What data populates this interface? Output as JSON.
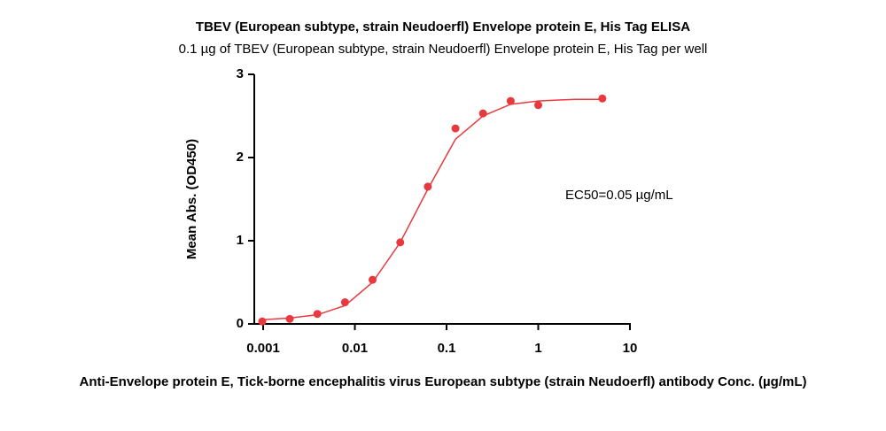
{
  "chart_data": {
    "type": "scatter",
    "title": "TBEV (European subtype, strain Neudoerfl) Envelope protein E, His Tag ELISA",
    "subtitle": "0.1 µg of TBEV (European subtype, strain Neudoerfl) Envelope protein E, His Tag per well",
    "x_label": "Anti-Envelope protein E, Tick-borne encephalitis virus European subtype (strain Neudoerfl) antibody Conc. (µg/mL)",
    "y_label": "Mean Abs. (OD450)",
    "annotation": "EC50=0.05 µg/mL",
    "x_scale": "log",
    "xlim": [
      0.0008,
      10
    ],
    "xticks": [
      0.001,
      0.01,
      0.1,
      1,
      10
    ],
    "ylim": [
      0,
      3
    ],
    "yticks": [
      0,
      1,
      2,
      3
    ],
    "points": {
      "color": "#e8393f",
      "x": [
        0.000977,
        0.00195,
        0.0039,
        0.0078,
        0.0156,
        0.03125,
        0.0625,
        0.125,
        0.25,
        0.5,
        1,
        5
      ],
      "values": [
        0.03,
        0.06,
        0.12,
        0.26,
        0.53,
        0.98,
        1.65,
        2.35,
        2.53,
        2.68,
        2.63,
        2.71
      ]
    },
    "curve": {
      "color": "#e8393f",
      "x": [
        0.000977,
        0.00195,
        0.0039,
        0.0078,
        0.0156,
        0.03125,
        0.0625,
        0.125,
        0.25,
        0.5,
        1,
        2.5,
        5
      ],
      "values": [
        0.05,
        0.07,
        0.11,
        0.22,
        0.5,
        0.98,
        1.62,
        2.22,
        2.5,
        2.64,
        2.68,
        2.7,
        2.7
      ]
    }
  }
}
